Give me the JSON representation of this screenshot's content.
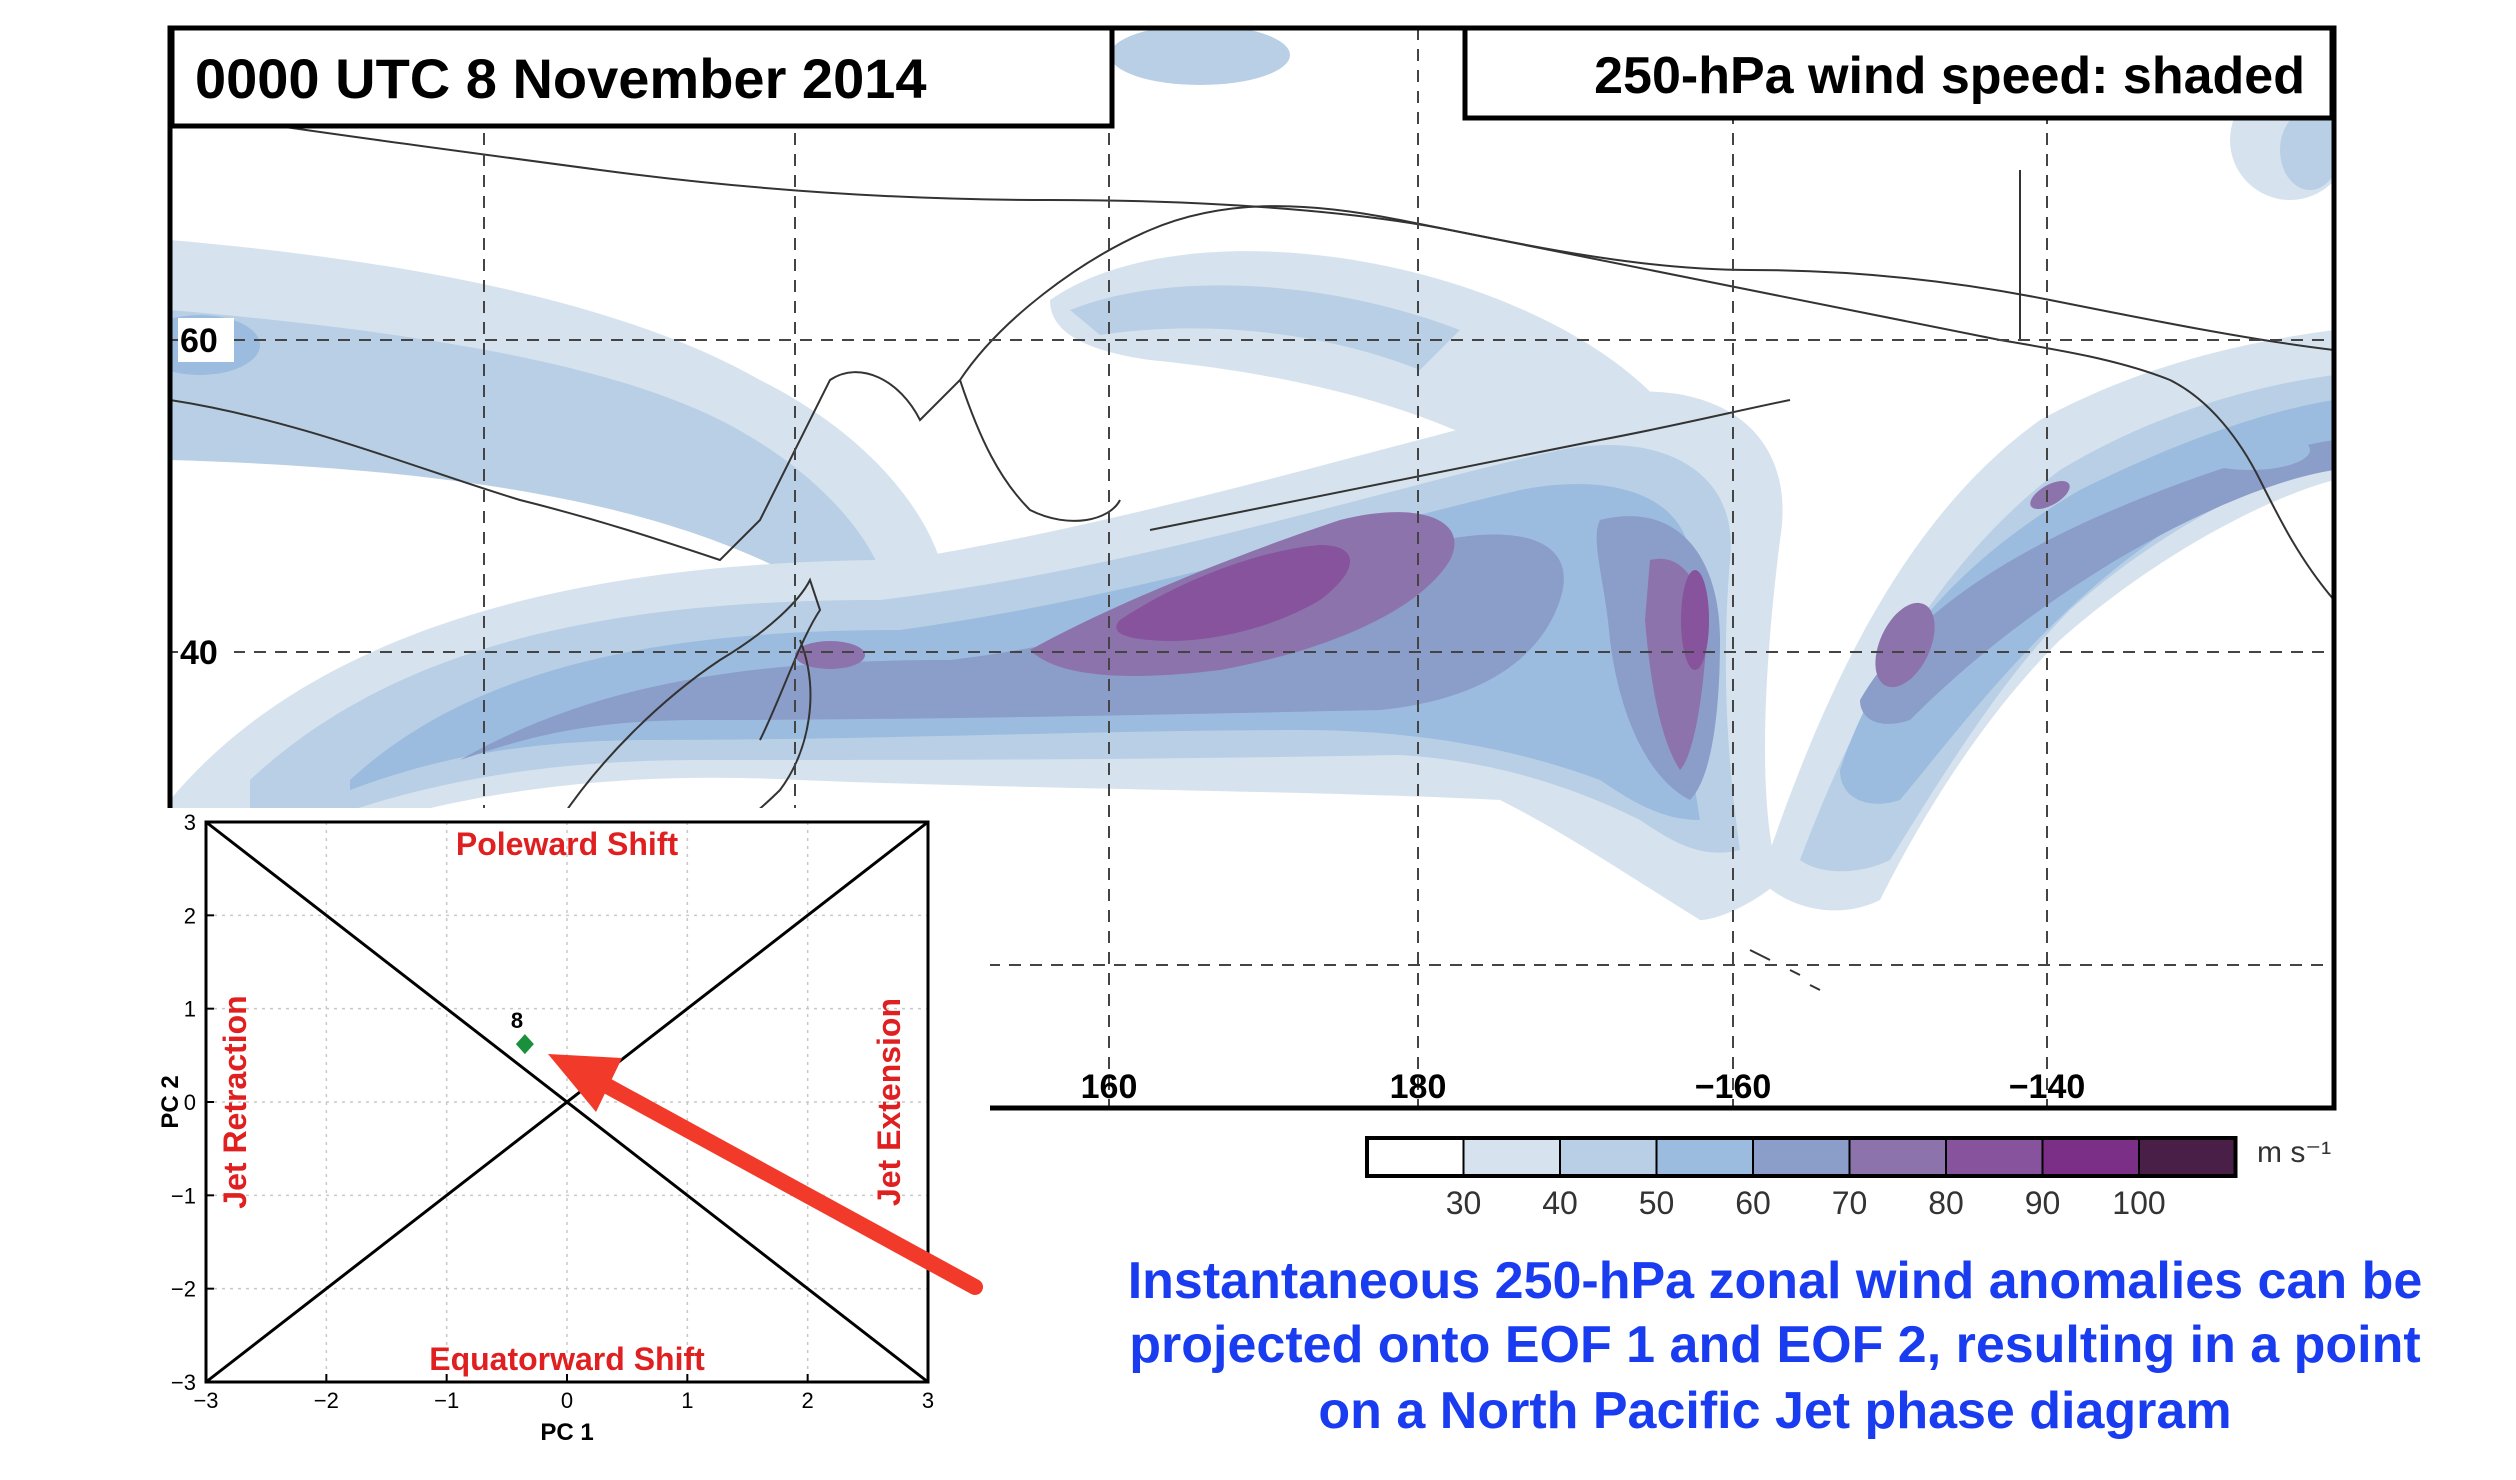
{
  "map": {
    "time_label": "0000 UTC 8 November 2014",
    "field_label": "250-hPa wind speed: shaded",
    "lat_labels": [
      "60",
      "40"
    ],
    "lon_labels": [
      "160",
      "180",
      "−160",
      "−140"
    ]
  },
  "colorbar": {
    "unit": "m s⁻¹",
    "ticks": [
      "30",
      "40",
      "50",
      "60",
      "70",
      "80",
      "90",
      "100"
    ],
    "colors": [
      "#ffffff",
      "#d6e3ee",
      "#b9cfe5",
      "#9bbcdf",
      "#8b9dc9",
      "#8d73ab",
      "#86539c",
      "#7b2f86",
      "#4a1f47"
    ]
  },
  "phase_diagram": {
    "xlabel": "PC 1",
    "ylabel": "PC 2",
    "xticks": [
      "−3",
      "−2",
      "−1",
      "0",
      "1",
      "2",
      "3"
    ],
    "yticks": [
      "3",
      "2",
      "1",
      "0",
      "−1",
      "−2",
      "−3"
    ],
    "quadrants": {
      "top": "Poleward Shift",
      "bottom": "Equatorward Shift",
      "left": "Jet Retraction",
      "right": "Jet Extension"
    },
    "point": {
      "label": "8",
      "pc1": -0.35,
      "pc2": 0.62,
      "color": "#1a8f3c"
    },
    "label_color": "#e02020"
  },
  "caption": {
    "lines": [
      "Instantaneous 250-hPa zonal wind anomalies can be",
      "projected onto EOF 1 and EOF 2, resulting in a point",
      "on a North Pacific Jet phase diagram"
    ],
    "color": "#1a3cf0"
  },
  "arrow": {
    "color": "#f23a2a"
  }
}
